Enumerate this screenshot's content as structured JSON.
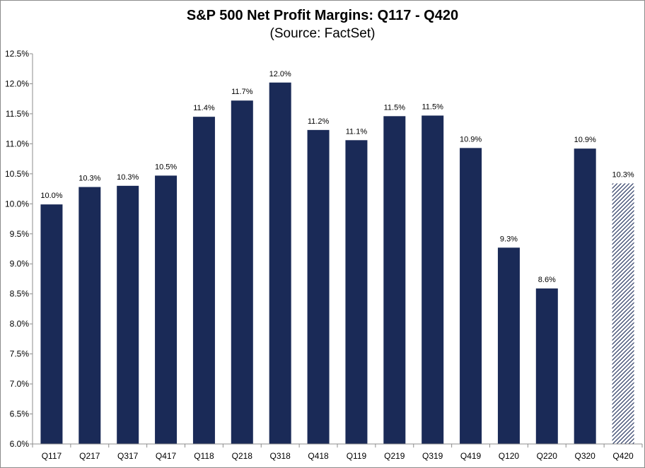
{
  "chart_data": {
    "type": "bar",
    "title": "S&P 500 Net Profit Margins: Q117 - Q420",
    "subtitle": "(Source: FactSet)",
    "xlabel": "",
    "ylabel": "",
    "ylim": [
      6.0,
      12.5
    ],
    "yticks": [
      6.0,
      6.5,
      7.0,
      7.5,
      8.0,
      8.5,
      9.0,
      9.5,
      10.0,
      10.5,
      11.0,
      11.5,
      12.0,
      12.5
    ],
    "ytick_labels": [
      "6.0%",
      "6.5%",
      "7.0%",
      "7.5%",
      "8.0%",
      "8.5%",
      "9.0%",
      "9.5%",
      "10.0%",
      "10.5%",
      "11.0%",
      "11.5%",
      "12.0%",
      "12.5%"
    ],
    "categories": [
      "Q117",
      "Q217",
      "Q317",
      "Q417",
      "Q118",
      "Q218",
      "Q318",
      "Q418",
      "Q119",
      "Q219",
      "Q319",
      "Q419",
      "Q120",
      "Q220",
      "Q320",
      "Q420"
    ],
    "values": [
      10.0,
      10.3,
      10.3,
      10.5,
      11.4,
      11.7,
      12.0,
      11.2,
      11.1,
      11.5,
      11.5,
      10.9,
      9.3,
      8.6,
      10.9,
      10.3
    ],
    "value_labels": [
      "10.0%",
      "10.3%",
      "10.3%",
      "10.5%",
      "11.4%",
      "11.7%",
      "12.0%",
      "11.2%",
      "11.1%",
      "11.5%",
      "11.5%",
      "10.9%",
      "9.3%",
      "8.6%",
      "10.9%",
      "10.3%"
    ],
    "plot_values": [
      9.99,
      10.28,
      10.3,
      10.47,
      11.45,
      11.72,
      12.02,
      11.23,
      11.06,
      11.46,
      11.47,
      10.93,
      9.27,
      8.59,
      10.92,
      10.34
    ],
    "estimated": [
      false,
      false,
      false,
      false,
      false,
      false,
      false,
      false,
      false,
      false,
      false,
      false,
      false,
      false,
      false,
      true
    ],
    "grid": false,
    "legend": "none",
    "colors": {
      "bar": "#1a2a57",
      "estimate_hatch": "#1a2a57",
      "axis": "#8c8c8c"
    }
  }
}
